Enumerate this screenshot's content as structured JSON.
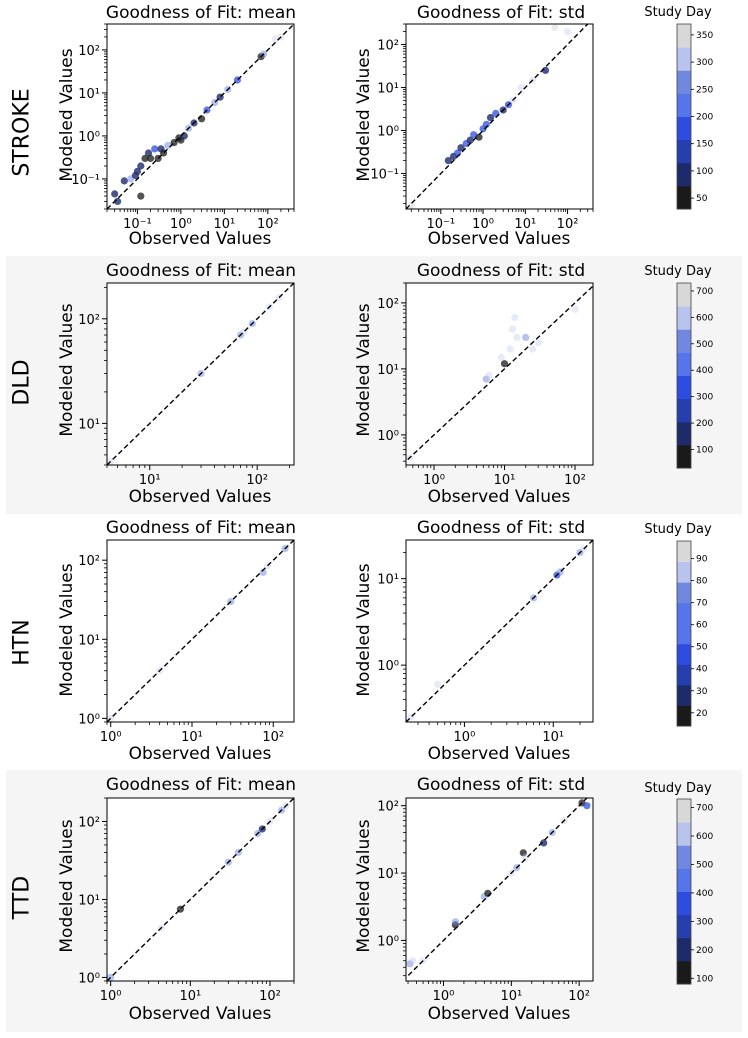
{
  "figure": {
    "panel_titles": {
      "mean": "Goodness of Fit: mean",
      "std": "Goodness of Fit: std"
    },
    "xlabel": "Observed Values",
    "ylabel": "Modeled Values",
    "colorbar_title": "Study Day",
    "colors": {
      "dark": "#1a1a1a",
      "navy": "#1e2b6b",
      "blue": "#2d4de0",
      "mid": "#7088e0",
      "light": "#b8c4ee",
      "grey": "#d8d8d8",
      "band": "#f5f5f5"
    }
  },
  "rows": [
    {
      "label": "STROKE",
      "shaded": false,
      "colorbar_ticks": [
        "50",
        "100",
        "150",
        "200",
        "250",
        "300",
        "350"
      ],
      "colorbar_range": [
        30,
        370
      ]
    },
    {
      "label": "DLD",
      "shaded": true,
      "colorbar_ticks": [
        "100",
        "200",
        "300",
        "400",
        "500",
        "600",
        "700"
      ],
      "colorbar_range": [
        30,
        730
      ]
    },
    {
      "label": "HTN",
      "shaded": false,
      "colorbar_ticks": [
        "20",
        "30",
        "40",
        "50",
        "60",
        "70",
        "80",
        "90"
      ],
      "colorbar_range": [
        14,
        98
      ]
    },
    {
      "label": "TTD",
      "shaded": true,
      "colorbar_ticks": [
        "100",
        "200",
        "300",
        "400",
        "500",
        "600",
        "700"
      ],
      "colorbar_range": [
        80,
        730
      ]
    }
  ],
  "chart_data": [
    {
      "type": "scatter",
      "row": "STROKE",
      "stat": "mean",
      "title": "Goodness of Fit: mean",
      "xlabel": "Observed Values",
      "ylabel": "Modeled Values",
      "scale": "log",
      "xlim": [
        0.02,
        400
      ],
      "ylim": [
        0.02,
        400
      ],
      "xticks": [
        {
          "v": 0.1,
          "label": "10⁻¹"
        },
        {
          "v": 1,
          "label": "10⁰"
        },
        {
          "v": 10,
          "label": "10¹"
        },
        {
          "v": 100,
          "label": "10²"
        }
      ],
      "yticks": [
        {
          "v": 0.1,
          "label": "10⁻¹"
        },
        {
          "v": 1,
          "label": "10⁰"
        },
        {
          "v": 10,
          "label": "10¹"
        },
        {
          "v": 100,
          "label": "10²"
        }
      ],
      "points": [
        [
          0.03,
          0.045,
          "navy"
        ],
        [
          0.035,
          0.03,
          "navy"
        ],
        [
          0.05,
          0.09,
          "navy"
        ],
        [
          0.07,
          0.1,
          "mid"
        ],
        [
          0.09,
          0.12,
          "navy"
        ],
        [
          0.1,
          0.15,
          "navy"
        ],
        [
          0.12,
          0.04,
          "dark"
        ],
        [
          0.12,
          0.2,
          "navy"
        ],
        [
          0.15,
          0.3,
          "dark"
        ],
        [
          0.18,
          0.4,
          "navy"
        ],
        [
          0.2,
          0.3,
          "dark"
        ],
        [
          0.25,
          0.5,
          "blue"
        ],
        [
          0.3,
          0.3,
          "dark"
        ],
        [
          0.35,
          0.5,
          "navy"
        ],
        [
          0.4,
          0.4,
          "dark"
        ],
        [
          0.5,
          0.6,
          "mid"
        ],
        [
          0.7,
          0.7,
          "dark"
        ],
        [
          0.9,
          0.9,
          "dark"
        ],
        [
          1.0,
          0.8,
          "dark"
        ],
        [
          1.2,
          1.0,
          "navy"
        ],
        [
          1.5,
          1.5,
          "mid"
        ],
        [
          2,
          2,
          "navy"
        ],
        [
          3,
          2.5,
          "dark"
        ],
        [
          4,
          4,
          "blue"
        ],
        [
          6,
          6,
          "mid"
        ],
        [
          8,
          8,
          "navy"
        ],
        [
          12,
          12,
          "mid"
        ],
        [
          20,
          20,
          "blue"
        ],
        [
          70,
          70,
          "dark"
        ],
        [
          80,
          80,
          "mid"
        ],
        [
          150,
          180,
          "light"
        ],
        [
          200,
          200,
          "grey"
        ]
      ]
    },
    {
      "type": "scatter",
      "row": "STROKE",
      "stat": "std",
      "title": "Goodness of Fit: std",
      "xlabel": "Observed Values",
      "ylabel": "Modeled Values",
      "scale": "log",
      "xlim": [
        0.015,
        400
      ],
      "ylim": [
        0.015,
        300
      ],
      "xticks": [
        {
          "v": 0.1,
          "label": "10⁻¹"
        },
        {
          "v": 1,
          "label": "10⁰"
        },
        {
          "v": 10,
          "label": "10¹"
        },
        {
          "v": 100,
          "label": "10²"
        }
      ],
      "yticks": [
        {
          "v": 0.1,
          "label": "10⁻¹"
        },
        {
          "v": 1,
          "label": "10⁰"
        },
        {
          "v": 10,
          "label": "10¹"
        },
        {
          "v": 100,
          "label": "10²"
        }
      ],
      "points": [
        [
          0.02,
          0.018,
          "grey"
        ],
        [
          0.15,
          0.2,
          "navy"
        ],
        [
          0.2,
          0.25,
          "navy"
        ],
        [
          0.25,
          0.3,
          "blue"
        ],
        [
          0.3,
          0.4,
          "navy"
        ],
        [
          0.4,
          0.5,
          "blue"
        ],
        [
          0.5,
          0.6,
          "navy"
        ],
        [
          0.6,
          0.8,
          "blue"
        ],
        [
          0.8,
          0.7,
          "dark"
        ],
        [
          1,
          1.1,
          "blue"
        ],
        [
          1.2,
          1.4,
          "blue"
        ],
        [
          1.5,
          2,
          "navy"
        ],
        [
          2,
          2.5,
          "blue"
        ],
        [
          3,
          3,
          "navy"
        ],
        [
          4,
          4,
          "blue"
        ],
        [
          5,
          5,
          "light"
        ],
        [
          8,
          10,
          "light"
        ],
        [
          15,
          15,
          "light"
        ],
        [
          30,
          25,
          "navy"
        ],
        [
          50,
          250,
          "grey"
        ],
        [
          100,
          200,
          "light"
        ]
      ]
    },
    {
      "type": "scatter",
      "row": "DLD",
      "stat": "mean",
      "title": "Goodness of Fit: mean",
      "xlabel": "Observed Values",
      "ylabel": "Modeled Values",
      "scale": "log",
      "xlim": [
        4,
        220
      ],
      "ylim": [
        4,
        220
      ],
      "xticks": [
        {
          "v": 10,
          "label": "10¹"
        },
        {
          "v": 100,
          "label": "10²"
        }
      ],
      "yticks": [
        {
          "v": 10,
          "label": "10¹"
        },
        {
          "v": 100,
          "label": "10²"
        }
      ],
      "points": [
        [
          4.3,
          4.3,
          "light"
        ],
        [
          30,
          30,
          "mid"
        ],
        [
          70,
          70,
          "mid"
        ],
        [
          75,
          75,
          "light"
        ],
        [
          90,
          90,
          "mid"
        ],
        [
          130,
          130,
          "light"
        ],
        [
          160,
          160,
          "light"
        ]
      ]
    },
    {
      "type": "scatter",
      "row": "DLD",
      "stat": "std",
      "title": "Goodness of Fit: std",
      "xlabel": "Observed Values",
      "ylabel": "Modeled Values",
      "scale": "log",
      "xlim": [
        0.4,
        180
      ],
      "ylim": [
        0.35,
        200
      ],
      "xticks": [
        {
          "v": 1,
          "label": "10⁰"
        },
        {
          "v": 10,
          "label": "10¹"
        },
        {
          "v": 100,
          "label": "10²"
        }
      ],
      "yticks": [
        {
          "v": 1,
          "label": "10⁰"
        },
        {
          "v": 10,
          "label": "10¹"
        },
        {
          "v": 100,
          "label": "10²"
        }
      ],
      "points": [
        [
          0.45,
          0.45,
          "light"
        ],
        [
          5.5,
          7,
          "mid"
        ],
        [
          6,
          8,
          "light"
        ],
        [
          9,
          15,
          "light"
        ],
        [
          10,
          12,
          "dark"
        ],
        [
          12,
          20,
          "light"
        ],
        [
          13,
          40,
          "light"
        ],
        [
          14,
          60,
          "light"
        ],
        [
          15,
          30,
          "light"
        ],
        [
          20,
          30,
          "mid"
        ],
        [
          25,
          20,
          "light"
        ],
        [
          30,
          25,
          "light"
        ],
        [
          100,
          80,
          "light"
        ]
      ]
    },
    {
      "type": "scatter",
      "row": "HTN",
      "stat": "mean",
      "title": "Goodness of Fit: mean",
      "xlabel": "Observed Values",
      "ylabel": "Modeled Values",
      "scale": "log",
      "xlim": [
        0.9,
        180
      ],
      "ylim": [
        0.9,
        180
      ],
      "xticks": [
        {
          "v": 1,
          "label": "10⁰"
        },
        {
          "v": 10,
          "label": "10¹"
        },
        {
          "v": 100,
          "label": "10²"
        }
      ],
      "yticks": [
        {
          "v": 1,
          "label": "10⁰"
        },
        {
          "v": 10,
          "label": "10¹"
        },
        {
          "v": 100,
          "label": "10²"
        }
      ],
      "points": [
        [
          1,
          1,
          "light"
        ],
        [
          4,
          4,
          "light"
        ],
        [
          30,
          30,
          "mid"
        ],
        [
          75,
          70,
          "mid"
        ],
        [
          85,
          85,
          "light"
        ],
        [
          140,
          140,
          "mid"
        ]
      ]
    },
    {
      "type": "scatter",
      "row": "HTN",
      "stat": "std",
      "title": "Goodness of Fit: std",
      "xlabel": "Observed Values",
      "ylabel": "Modeled Values",
      "scale": "log",
      "xlim": [
        0.22,
        28
      ],
      "ylim": [
        0.22,
        28
      ],
      "xticks": [
        {
          "v": 1,
          "label": "10⁰"
        },
        {
          "v": 10,
          "label": "10¹"
        }
      ],
      "yticks": [
        {
          "v": 1,
          "label": "10⁰"
        },
        {
          "v": 10,
          "label": "10¹"
        }
      ],
      "points": [
        [
          0.25,
          0.25,
          "light"
        ],
        [
          0.5,
          0.6,
          "light"
        ],
        [
          6,
          6,
          "mid"
        ],
        [
          11,
          11,
          "blue"
        ],
        [
          12,
          12,
          "mid"
        ],
        [
          20,
          20,
          "mid"
        ],
        [
          22,
          22,
          "light"
        ]
      ]
    },
    {
      "type": "scatter",
      "row": "TTD",
      "stat": "mean",
      "title": "Goodness of Fit: mean",
      "xlabel": "Observed Values",
      "ylabel": "Modeled Values",
      "scale": "log",
      "xlim": [
        0.9,
        200
      ],
      "ylim": [
        0.9,
        200
      ],
      "xticks": [
        {
          "v": 1,
          "label": "10⁰"
        },
        {
          "v": 10,
          "label": "10¹"
        },
        {
          "v": 100,
          "label": "10²"
        }
      ],
      "yticks": [
        {
          "v": 1,
          "label": "10⁰"
        },
        {
          "v": 10,
          "label": "10¹"
        },
        {
          "v": 100,
          "label": "10²"
        }
      ],
      "points": [
        [
          1,
          1,
          "mid"
        ],
        [
          4.3,
          4.3,
          "light"
        ],
        [
          7.5,
          7.5,
          "dark"
        ],
        [
          30,
          30,
          "mid"
        ],
        [
          40,
          40,
          "mid"
        ],
        [
          70,
          70,
          "mid"
        ],
        [
          80,
          80,
          "navy"
        ],
        [
          100,
          100,
          "light"
        ],
        [
          140,
          140,
          "mid"
        ],
        [
          160,
          160,
          "light"
        ]
      ]
    },
    {
      "type": "scatter",
      "row": "TTD",
      "stat": "std",
      "title": "Goodness of Fit: std",
      "xlabel": "Observed Values",
      "ylabel": "Modeled Values",
      "scale": "log",
      "xlim": [
        0.28,
        160
      ],
      "ylim": [
        0.25,
        130
      ],
      "xticks": [
        {
          "v": 1,
          "label": "10⁰"
        },
        {
          "v": 10,
          "label": "10¹"
        },
        {
          "v": 100,
          "label": "10²"
        }
      ],
      "yticks": [
        {
          "v": 1,
          "label": "10⁰"
        },
        {
          "v": 10,
          "label": "10¹"
        },
        {
          "v": 100,
          "label": "10²"
        }
      ],
      "points": [
        [
          0.32,
          0.45,
          "mid"
        ],
        [
          0.35,
          0.5,
          "light"
        ],
        [
          0.5,
          0.5,
          "light"
        ],
        [
          1.5,
          1.7,
          "dark"
        ],
        [
          1.5,
          1.9,
          "mid"
        ],
        [
          4,
          4.5,
          "mid"
        ],
        [
          4.5,
          5,
          "dark"
        ],
        [
          10,
          10,
          "light"
        ],
        [
          12,
          12,
          "mid"
        ],
        [
          15,
          20,
          "dark"
        ],
        [
          16,
          17,
          "light"
        ],
        [
          30,
          28,
          "navy"
        ],
        [
          40,
          40,
          "mid"
        ],
        [
          60,
          60,
          "grey"
        ],
        [
          110,
          110,
          "dark"
        ],
        [
          130,
          100,
          "blue"
        ]
      ]
    }
  ]
}
